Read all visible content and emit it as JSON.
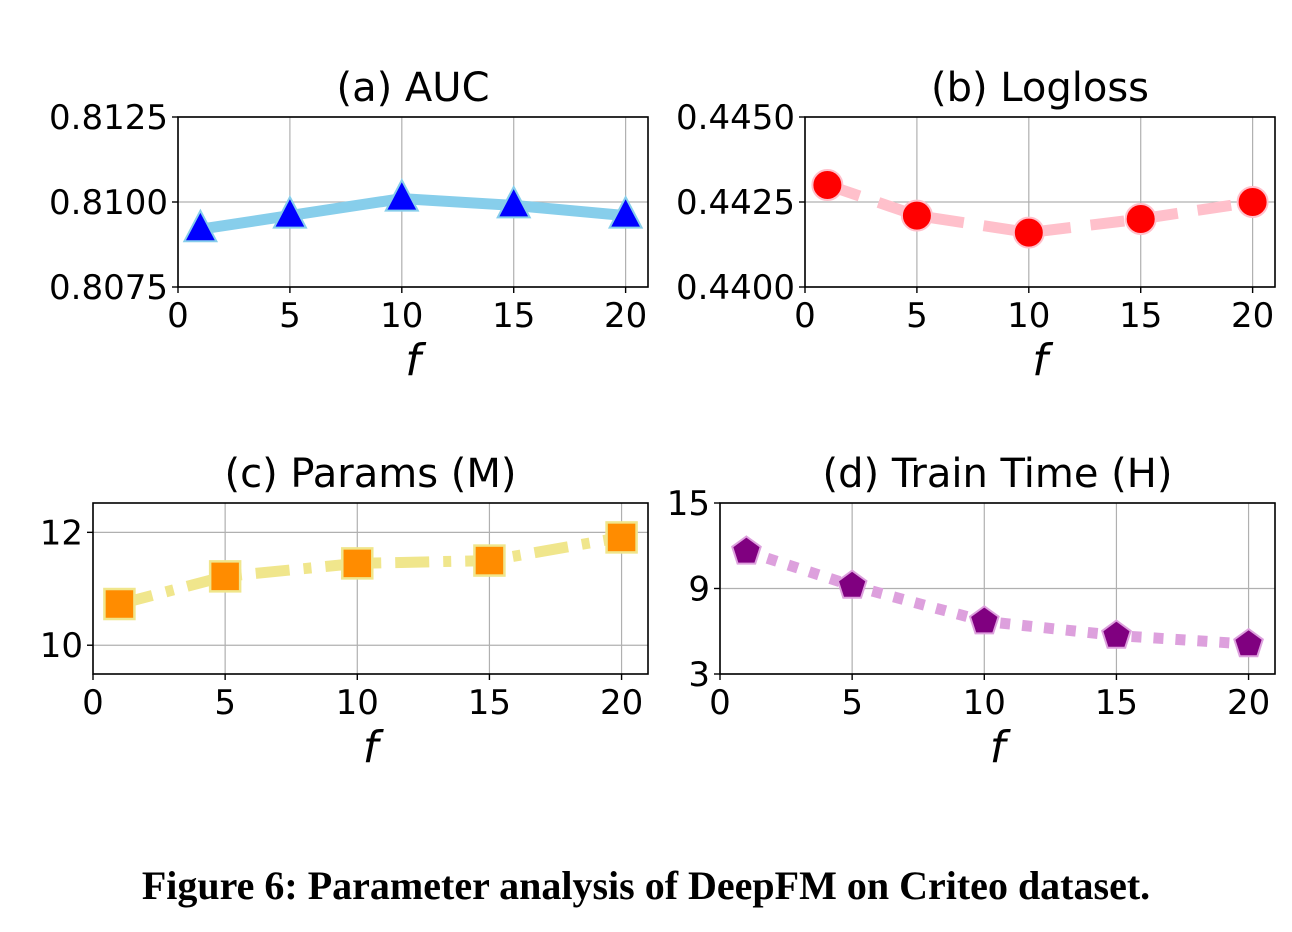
{
  "caption": "Figure 6: Parameter analysis of DeepFM on Criteo dataset.",
  "chart_data": [
    {
      "type": "line",
      "title": "(a) AUC",
      "xlabel": "f",
      "ylabel": "",
      "x": [
        1,
        5,
        10,
        15,
        20
      ],
      "series": [
        {
          "name": "AUC",
          "values": [
            0.8092,
            0.8096,
            0.8101,
            0.8099,
            0.8096
          ]
        }
      ],
      "xlim": [
        0,
        21
      ],
      "ylim": [
        0.8075,
        0.8125
      ],
      "xticks": [
        0,
        5,
        10,
        15,
        20
      ],
      "xtick_labels": [
        "0",
        "5",
        "10",
        "15",
        "20"
      ],
      "yticks": [
        0.8075,
        0.81,
        0.8125
      ],
      "ytick_labels": [
        "0.8075",
        "0.8100",
        "0.8125"
      ],
      "grid": true,
      "line_color": "#87ceeb",
      "marker_color": "#0000ff",
      "marker": "triangle",
      "line_style": "solid"
    },
    {
      "type": "line",
      "title": "(b) Logloss",
      "xlabel": "f",
      "ylabel": "",
      "x": [
        1,
        5,
        10,
        15,
        20
      ],
      "series": [
        {
          "name": "Logloss",
          "values": [
            0.443,
            0.4421,
            0.4416,
            0.442,
            0.4425
          ]
        }
      ],
      "xlim": [
        0,
        21
      ],
      "ylim": [
        0.44,
        0.445
      ],
      "xticks": [
        0,
        5,
        10,
        15,
        20
      ],
      "xtick_labels": [
        "0",
        "5",
        "10",
        "15",
        "20"
      ],
      "yticks": [
        0.44,
        0.4425,
        0.445
      ],
      "ytick_labels": [
        "0.4400",
        "0.4425",
        "0.4450"
      ],
      "grid": true,
      "line_color": "#ffc0cb",
      "marker_color": "#ff0000",
      "marker": "circle",
      "line_style": "dashed"
    },
    {
      "type": "line",
      "title": "(c) Params (M)",
      "xlabel": "f",
      "ylabel": "",
      "x": [
        1,
        5,
        10,
        15,
        20
      ],
      "series": [
        {
          "name": "Params (M)",
          "values": [
            10.73,
            11.22,
            11.45,
            11.5,
            11.91
          ]
        }
      ],
      "xlim": [
        0,
        21
      ],
      "ylim": [
        9.49,
        12.52
      ],
      "xticks": [
        0,
        5,
        10,
        15,
        20
      ],
      "xtick_labels": [
        "0",
        "5",
        "10",
        "15",
        "20"
      ],
      "yticks": [
        10,
        12
      ],
      "ytick_labels": [
        "10",
        "12"
      ],
      "grid": true,
      "line_color": "#f0e68c",
      "marker_color": "#ff8c00",
      "marker": "square",
      "line_style": "dashdot"
    },
    {
      "type": "line",
      "title": "(d) Train Time (H)",
      "xlabel": "f",
      "ylabel": "",
      "x": [
        1,
        5,
        10,
        15,
        20
      ],
      "series": [
        {
          "name": "Train Time (H)",
          "values": [
            11.6,
            9.2,
            6.7,
            5.7,
            5.1
          ]
        }
      ],
      "xlim": [
        0,
        21
      ],
      "ylim": [
        3,
        15
      ],
      "xticks": [
        0,
        5,
        10,
        15,
        20
      ],
      "xtick_labels": [
        "0",
        "5",
        "10",
        "15",
        "20"
      ],
      "yticks": [
        3,
        9,
        15
      ],
      "ytick_labels": [
        "3",
        "9",
        "15"
      ],
      "grid": true,
      "line_color": "#dda0dd",
      "marker_color": "#800080",
      "marker": "pentagon",
      "line_style": "dotted"
    }
  ]
}
